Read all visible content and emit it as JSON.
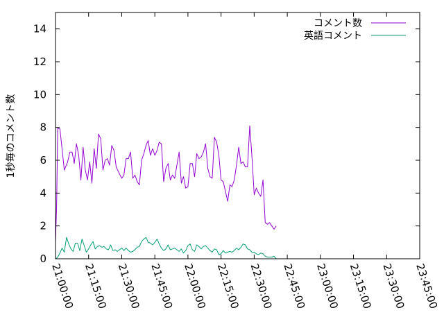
{
  "chart_data": {
    "type": "line",
    "title": "",
    "xlabel": "",
    "ylabel": "1秒毎のコメント数",
    "ylim": [
      0,
      15
    ],
    "yticks": [
      0,
      2,
      4,
      6,
      8,
      10,
      12,
      14
    ],
    "xlim": [
      "21:00:00",
      "23:45:00"
    ],
    "xticks": [
      "21:00:00",
      "21:15:00",
      "21:30:00",
      "21:45:00",
      "22:00:00",
      "22:15:00",
      "22:30:00",
      "22:45:00",
      "23:00:00",
      "23:15:00",
      "23:30:00",
      "23:45:00"
    ],
    "legend_position": "top-right",
    "grid": false,
    "series": [
      {
        "name": "コメント数",
        "color": "#9400d3",
        "points": [
          [
            "21:00:00",
            1.0
          ],
          [
            "21:00:30",
            3.2
          ],
          [
            "21:01:00",
            7.95
          ],
          [
            "21:02:00",
            7.9
          ],
          [
            "21:04:00",
            5.4
          ],
          [
            "21:05:30",
            5.9
          ],
          [
            "21:06:30",
            6.5
          ],
          [
            "21:07:30",
            6.5
          ],
          [
            "21:08:30",
            5.8
          ],
          [
            "21:09:30",
            7.0
          ],
          [
            "21:10:30",
            6.3
          ],
          [
            "21:11:30",
            4.8
          ],
          [
            "21:12:30",
            6.8
          ],
          [
            "21:13:30",
            5.4
          ],
          [
            "21:14:30",
            4.8
          ],
          [
            "21:15:30",
            5.9
          ],
          [
            "21:16:30",
            4.6
          ],
          [
            "21:17:30",
            6.7
          ],
          [
            "21:18:30",
            5.5
          ],
          [
            "21:19:30",
            7.6
          ],
          [
            "21:20:30",
            7.3
          ],
          [
            "21:21:30",
            5.4
          ],
          [
            "21:22:30",
            6.0
          ],
          [
            "21:23:30",
            6.1
          ],
          [
            "21:24:30",
            5.7
          ],
          [
            "21:25:30",
            6.9
          ],
          [
            "21:26:30",
            6.6
          ],
          [
            "21:27:30",
            5.6
          ],
          [
            "21:28:30",
            5.3
          ],
          [
            "21:30:00",
            4.9
          ],
          [
            "21:31:00",
            5.1
          ],
          [
            "21:32:00",
            6.1
          ],
          [
            "21:33:00",
            6.1
          ],
          [
            "21:34:00",
            6.5
          ],
          [
            "21:35:00",
            4.9
          ],
          [
            "21:36:00",
            5.1
          ],
          [
            "21:37:00",
            4.7
          ],
          [
            "21:38:00",
            4.5
          ],
          [
            "21:39:00",
            6.0
          ],
          [
            "21:40:00",
            6.4
          ],
          [
            "21:41:00",
            6.9
          ],
          [
            "21:42:00",
            7.2
          ],
          [
            "21:43:00",
            6.3
          ],
          [
            "21:44:00",
            6.7
          ],
          [
            "21:45:00",
            6.3
          ],
          [
            "21:46:00",
            6.6
          ],
          [
            "21:47:00",
            7.1
          ],
          [
            "21:48:00",
            7.0
          ],
          [
            "21:49:00",
            4.7
          ],
          [
            "21:50:00",
            5.5
          ],
          [
            "21:51:00",
            5.8
          ],
          [
            "21:52:00",
            4.8
          ],
          [
            "21:53:00",
            5.1
          ],
          [
            "21:54:00",
            4.9
          ],
          [
            "21:55:00",
            5.7
          ],
          [
            "21:56:00",
            6.5
          ],
          [
            "21:57:00",
            4.6
          ],
          [
            "21:58:00",
            5.0
          ],
          [
            "21:59:00",
            4.3
          ],
          [
            "22:00:00",
            4.4
          ],
          [
            "22:01:00",
            5.8
          ],
          [
            "22:02:00",
            5.8
          ],
          [
            "22:03:00",
            5.0
          ],
          [
            "22:04:00",
            6.4
          ],
          [
            "22:05:00",
            6.1
          ],
          [
            "22:06:00",
            6.2
          ],
          [
            "22:07:00",
            6.5
          ],
          [
            "22:08:00",
            7.0
          ],
          [
            "22:09:00",
            5.5
          ],
          [
            "22:10:00",
            5.0
          ],
          [
            "22:11:00",
            4.9
          ],
          [
            "22:12:00",
            7.4
          ],
          [
            "22:13:00",
            7.1
          ],
          [
            "22:14:00",
            6.3
          ],
          [
            "22:15:00",
            4.8
          ],
          [
            "22:16:00",
            4.7
          ],
          [
            "22:17:00",
            4.1
          ],
          [
            "22:18:00",
            3.5
          ],
          [
            "22:19:00",
            4.5
          ],
          [
            "22:20:00",
            4.4
          ],
          [
            "22:21:00",
            4.8
          ],
          [
            "22:22:00",
            5.7
          ],
          [
            "22:23:00",
            6.8
          ],
          [
            "22:24:00",
            5.8
          ],
          [
            "22:25:00",
            5.9
          ],
          [
            "22:26:00",
            5.6
          ],
          [
            "22:27:00",
            5.6
          ],
          [
            "22:28:00",
            8.1
          ],
          [
            "22:29:00",
            6.2
          ],
          [
            "22:30:00",
            3.9
          ],
          [
            "22:31:00",
            4.3
          ],
          [
            "22:32:00",
            4.0
          ],
          [
            "22:33:00",
            3.8
          ],
          [
            "22:34:00",
            4.8
          ],
          [
            "22:35:00",
            2.2
          ],
          [
            "22:36:00",
            2.1
          ],
          [
            "22:37:00",
            2.2
          ],
          [
            "22:38:00",
            2.0
          ],
          [
            "22:39:00",
            1.8
          ],
          [
            "22:40:00",
            2.0
          ]
        ]
      },
      {
        "name": "英語コメント",
        "color": "#009e73",
        "points": [
          [
            "21:00:00",
            0.0
          ],
          [
            "21:01:00",
            0.1
          ],
          [
            "21:02:00",
            0.35
          ],
          [
            "21:03:00",
            0.65
          ],
          [
            "21:04:00",
            0.4
          ],
          [
            "21:05:00",
            1.3
          ],
          [
            "21:06:00",
            0.9
          ],
          [
            "21:07:00",
            0.6
          ],
          [
            "21:08:00",
            0.45
          ],
          [
            "21:09:00",
            0.95
          ],
          [
            "21:10:00",
            0.95
          ],
          [
            "21:11:00",
            0.5
          ],
          [
            "21:12:00",
            1.2
          ],
          [
            "21:13:00",
            0.8
          ],
          [
            "21:14:00",
            0.4
          ],
          [
            "21:15:00",
            0.6
          ],
          [
            "21:16:00",
            0.85
          ],
          [
            "21:17:00",
            1.05
          ],
          [
            "21:18:00",
            0.6
          ],
          [
            "21:19:00",
            0.75
          ],
          [
            "21:20:00",
            0.8
          ],
          [
            "21:21:00",
            0.7
          ],
          [
            "21:22:00",
            0.75
          ],
          [
            "21:23:00",
            0.6
          ],
          [
            "21:24:00",
            0.55
          ],
          [
            "21:25:00",
            0.85
          ],
          [
            "21:26:00",
            0.5
          ],
          [
            "21:27:00",
            0.55
          ],
          [
            "21:28:00",
            0.45
          ],
          [
            "21:29:00",
            0.55
          ],
          [
            "21:30:00",
            0.65
          ],
          [
            "21:31:00",
            0.5
          ],
          [
            "21:32:00",
            0.65
          ],
          [
            "21:33:00",
            0.5
          ],
          [
            "21:34:00",
            0.4
          ],
          [
            "21:35:00",
            0.45
          ],
          [
            "21:36:00",
            0.55
          ],
          [
            "21:37:00",
            0.7
          ],
          [
            "21:38:00",
            0.75
          ],
          [
            "21:39:00",
            1.05
          ],
          [
            "21:40:00",
            1.2
          ],
          [
            "21:41:00",
            1.3
          ],
          [
            "21:42:00",
            1.0
          ],
          [
            "21:43:00",
            0.95
          ],
          [
            "21:44:00",
            0.85
          ],
          [
            "21:45:00",
            1.0
          ],
          [
            "21:46:00",
            1.2
          ],
          [
            "21:47:00",
            0.9
          ],
          [
            "21:48:00",
            0.65
          ],
          [
            "21:49:00",
            0.5
          ],
          [
            "21:50:00",
            0.6
          ],
          [
            "21:51:00",
            0.85
          ],
          [
            "21:52:00",
            0.55
          ],
          [
            "21:53:00",
            0.6
          ],
          [
            "21:54:00",
            0.65
          ],
          [
            "21:55:00",
            0.55
          ],
          [
            "21:56:00",
            0.45
          ],
          [
            "21:57:00",
            0.6
          ],
          [
            "21:58:00",
            0.35
          ],
          [
            "21:59:00",
            0.5
          ],
          [
            "22:00:00",
            0.8
          ],
          [
            "22:01:00",
            0.9
          ],
          [
            "22:02:00",
            0.55
          ],
          [
            "22:03:00",
            0.45
          ],
          [
            "22:04:00",
            0.85
          ],
          [
            "22:05:00",
            0.75
          ],
          [
            "22:06:00",
            0.6
          ],
          [
            "22:07:00",
            0.75
          ],
          [
            "22:08:00",
            0.8
          ],
          [
            "22:09:00",
            0.65
          ],
          [
            "22:10:00",
            0.5
          ],
          [
            "22:11:00",
            0.4
          ],
          [
            "22:12:00",
            0.6
          ],
          [
            "22:13:00",
            0.55
          ],
          [
            "22:14:00",
            0.25
          ],
          [
            "22:15:00",
            0.3
          ],
          [
            "22:16:00",
            0.5
          ],
          [
            "22:17:00",
            0.35
          ],
          [
            "22:18:00",
            0.4
          ],
          [
            "22:19:00",
            0.45
          ],
          [
            "22:20:00",
            0.4
          ],
          [
            "22:21:00",
            0.5
          ],
          [
            "22:22:00",
            0.65
          ],
          [
            "22:23:00",
            0.55
          ],
          [
            "22:24:00",
            0.7
          ],
          [
            "22:25:00",
            0.9
          ],
          [
            "22:26:00",
            0.85
          ],
          [
            "22:27:00",
            0.6
          ],
          [
            "22:28:00",
            0.55
          ],
          [
            "22:29:00",
            0.4
          ],
          [
            "22:30:00",
            0.4
          ],
          [
            "22:31:00",
            0.3
          ],
          [
            "22:32:00",
            0.25
          ],
          [
            "22:33:00",
            0.35
          ],
          [
            "22:34:00",
            0.3
          ],
          [
            "22:35:00",
            0.15
          ],
          [
            "22:36:00",
            0.1
          ],
          [
            "22:37:00",
            0.1
          ],
          [
            "22:38:00",
            0.1
          ],
          [
            "22:39:00",
            0.15
          ],
          [
            "22:40:00",
            0.0
          ]
        ]
      }
    ]
  }
}
